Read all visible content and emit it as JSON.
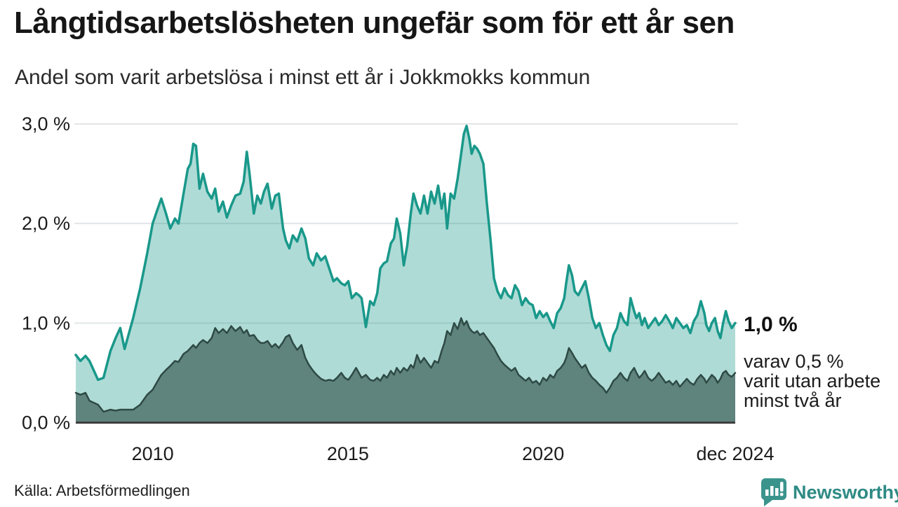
{
  "header": {},
  "annotation": {
    "value_label": "1,0 %",
    "lines": [
      "varav 0,5 %",
      "varit utan arbete",
      "minst två år"
    ]
  },
  "footer": {
    "source": "Källa: Arbetsförmedlingen",
    "brand": "Newsworthy"
  },
  "colors": {
    "title": "#161616",
    "text": "#1c1c1c",
    "gridline": "#e2e5e7",
    "baseline": "#3f3f3f",
    "teal_line": "#19988a",
    "teal_fill": "rgba(26,152,138,0.35)",
    "dark_line": "#2e4a45",
    "dark_fill": "rgba(30,58,53,0.55)",
    "logo_teal": "#3a948c",
    "logo_text": "#2e8a84"
  },
  "chart_data": {
    "type": "area",
    "title": "Långtidsarbetslösheten ungefär som för ett år sen",
    "subtitle": "Andel som varit arbetslösa i minst ett år i Jokkmokks kommun",
    "xlabel": "",
    "ylabel": "",
    "grid": true,
    "legend": "none",
    "ylim": [
      0,
      3.0
    ],
    "yticks": [
      {
        "value": 0,
        "label": "0,0 %"
      },
      {
        "value": 1,
        "label": "1,0 %"
      },
      {
        "value": 2,
        "label": "2,0 %"
      },
      {
        "value": 3,
        "label": "3,0 %"
      }
    ],
    "xticks": [
      {
        "value": 2010,
        "label": "2010"
      },
      {
        "value": 2015,
        "label": "2015"
      },
      {
        "value": 2020,
        "label": "2020"
      },
      {
        "value": 2024.92,
        "label": "dec 2024"
      }
    ],
    "x": [
      2008.03,
      2008.15,
      2008.28,
      2008.38,
      2008.6,
      2008.74,
      2008.92,
      2009.05,
      2009.17,
      2009.28,
      2009.5,
      2009.68,
      2009.86,
      2010.0,
      2010.13,
      2010.22,
      2010.34,
      2010.45,
      2010.57,
      2010.66,
      2010.79,
      2010.9,
      2010.97,
      2011.04,
      2011.11,
      2011.2,
      2011.29,
      2011.4,
      2011.51,
      2011.6,
      2011.69,
      2011.8,
      2011.9,
      2012.01,
      2012.12,
      2012.24,
      2012.33,
      2012.41,
      2012.48,
      2012.59,
      2012.68,
      2012.77,
      2012.85,
      2012.94,
      2013.05,
      2013.14,
      2013.23,
      2013.34,
      2013.41,
      2013.5,
      2013.59,
      2013.7,
      2013.81,
      2013.91,
      2014.0,
      2014.11,
      2014.2,
      2014.31,
      2014.42,
      2014.52,
      2014.63,
      2014.72,
      2014.83,
      2014.92,
      2015.01,
      2015.1,
      2015.21,
      2015.28,
      2015.35,
      2015.46,
      2015.57,
      2015.66,
      2015.75,
      2015.83,
      2015.92,
      2016.0,
      2016.1,
      2016.18,
      2016.25,
      2016.34,
      2016.43,
      2016.52,
      2016.61,
      2016.68,
      2016.77,
      2016.86,
      2016.95,
      2017.04,
      2017.13,
      2017.22,
      2017.31,
      2017.4,
      2017.47,
      2017.54,
      2017.63,
      2017.72,
      2017.81,
      2017.9,
      2017.97,
      2018.04,
      2018.11,
      2018.17,
      2018.24,
      2018.31,
      2018.38,
      2018.47,
      2018.56,
      2018.65,
      2018.74,
      2018.83,
      2018.92,
      2019.01,
      2019.1,
      2019.19,
      2019.28,
      2019.37,
      2019.46,
      2019.55,
      2019.64,
      2019.73,
      2019.82,
      2019.91,
      2020.0,
      2020.09,
      2020.18,
      2020.27,
      2020.36,
      2020.45,
      2020.54,
      2020.59,
      2020.66,
      2020.74,
      2020.81,
      2020.9,
      2020.99,
      2021.08,
      2021.17,
      2021.26,
      2021.35,
      2021.44,
      2021.53,
      2021.62,
      2021.71,
      2021.8,
      2021.89,
      2021.98,
      2022.07,
      2022.16,
      2022.24,
      2022.33,
      2022.39,
      2022.46,
      2022.53,
      2022.6,
      2022.69,
      2022.78,
      2022.87,
      2022.96,
      2023.05,
      2023.14,
      2023.23,
      2023.32,
      2023.41,
      2023.5,
      2023.59,
      2023.68,
      2023.77,
      2023.86,
      2023.95,
      2024.04,
      2024.13,
      2024.18,
      2024.25,
      2024.32,
      2024.4,
      2024.47,
      2024.54,
      2024.61,
      2024.68,
      2024.75,
      2024.83,
      2024.92
    ],
    "series": [
      {
        "name": "Andel som varit arbetslösa i minst ett år",
        "stroke_width": 3.5,
        "values": [
          0.68,
          0.62,
          0.67,
          0.62,
          0.43,
          0.45,
          0.72,
          0.85,
          0.95,
          0.74,
          1.05,
          1.35,
          1.7,
          2.0,
          2.15,
          2.25,
          2.1,
          1.95,
          2.05,
          2.0,
          2.3,
          2.55,
          2.6,
          2.8,
          2.78,
          2.35,
          2.5,
          2.32,
          2.25,
          2.35,
          2.12,
          2.22,
          2.06,
          2.18,
          2.28,
          2.3,
          2.42,
          2.72,
          2.5,
          2.1,
          2.28,
          2.2,
          2.32,
          2.4,
          2.15,
          2.28,
          2.3,
          1.95,
          1.83,
          1.75,
          1.88,
          1.82,
          1.95,
          1.85,
          1.65,
          1.58,
          1.7,
          1.63,
          1.67,
          1.55,
          1.42,
          1.45,
          1.4,
          1.38,
          1.42,
          1.25,
          1.3,
          1.28,
          1.25,
          0.96,
          1.22,
          1.18,
          1.3,
          1.55,
          1.6,
          1.62,
          1.8,
          1.85,
          2.05,
          1.9,
          1.58,
          1.78,
          2.1,
          2.3,
          2.18,
          2.1,
          2.28,
          2.1,
          2.32,
          2.2,
          2.38,
          2.15,
          2.3,
          1.95,
          2.3,
          2.25,
          2.45,
          2.7,
          2.9,
          2.98,
          2.85,
          2.7,
          2.78,
          2.75,
          2.7,
          2.6,
          2.2,
          1.85,
          1.45,
          1.32,
          1.25,
          1.35,
          1.28,
          1.25,
          1.38,
          1.32,
          1.18,
          1.25,
          1.2,
          1.18,
          1.05,
          1.12,
          1.06,
          1.1,
          1.02,
          0.95,
          1.1,
          1.15,
          1.25,
          1.4,
          1.58,
          1.48,
          1.32,
          1.28,
          1.35,
          1.42,
          1.25,
          1.05,
          0.95,
          1.0,
          0.88,
          0.78,
          0.72,
          0.88,
          0.95,
          1.1,
          1.02,
          0.98,
          1.25,
          1.12,
          1.05,
          1.1,
          0.98,
          1.05,
          0.95,
          1.0,
          1.05,
          0.98,
          1.02,
          1.08,
          1.02,
          0.95,
          1.05,
          1.0,
          0.95,
          0.98,
          0.9,
          1.02,
          1.08,
          1.22,
          1.1,
          0.98,
          0.92,
          1.0,
          1.05,
          0.92,
          0.85,
          1.0,
          1.12,
          1.02,
          0.95,
          1.0
        ]
      },
      {
        "name": "varav utan arbete i minst två år",
        "stroke_width": 2.5,
        "values": [
          0.3,
          0.28,
          0.3,
          0.22,
          0.18,
          0.11,
          0.13,
          0.12,
          0.13,
          0.13,
          0.13,
          0.18,
          0.28,
          0.33,
          0.42,
          0.48,
          0.53,
          0.57,
          0.62,
          0.61,
          0.69,
          0.72,
          0.75,
          0.78,
          0.75,
          0.8,
          0.83,
          0.8,
          0.85,
          0.95,
          0.9,
          0.94,
          0.9,
          0.97,
          0.92,
          0.96,
          0.9,
          0.93,
          0.87,
          0.88,
          0.83,
          0.8,
          0.8,
          0.82,
          0.76,
          0.79,
          0.75,
          0.81,
          0.86,
          0.88,
          0.8,
          0.73,
          0.78,
          0.65,
          0.58,
          0.52,
          0.48,
          0.44,
          0.42,
          0.43,
          0.42,
          0.45,
          0.5,
          0.45,
          0.43,
          0.48,
          0.55,
          0.5,
          0.45,
          0.48,
          0.43,
          0.42,
          0.45,
          0.42,
          0.48,
          0.45,
          0.52,
          0.48,
          0.55,
          0.5,
          0.55,
          0.52,
          0.58,
          0.55,
          0.68,
          0.6,
          0.65,
          0.6,
          0.55,
          0.62,
          0.6,
          0.72,
          0.8,
          0.92,
          0.88,
          1.0,
          0.94,
          1.05,
          0.98,
          1.02,
          0.95,
          0.92,
          0.9,
          0.92,
          0.88,
          0.9,
          0.85,
          0.8,
          0.75,
          0.68,
          0.62,
          0.58,
          0.55,
          0.52,
          0.55,
          0.48,
          0.45,
          0.42,
          0.45,
          0.4,
          0.42,
          0.38,
          0.45,
          0.42,
          0.48,
          0.45,
          0.52,
          0.55,
          0.6,
          0.65,
          0.75,
          0.7,
          0.65,
          0.6,
          0.55,
          0.58,
          0.5,
          0.45,
          0.42,
          0.38,
          0.35,
          0.3,
          0.35,
          0.42,
          0.45,
          0.5,
          0.45,
          0.42,
          0.5,
          0.55,
          0.5,
          0.45,
          0.48,
          0.52,
          0.45,
          0.42,
          0.45,
          0.5,
          0.45,
          0.4,
          0.42,
          0.38,
          0.42,
          0.36,
          0.4,
          0.44,
          0.4,
          0.38,
          0.44,
          0.48,
          0.44,
          0.4,
          0.44,
          0.48,
          0.45,
          0.4,
          0.44,
          0.5,
          0.52,
          0.48,
          0.46,
          0.5
        ]
      }
    ]
  }
}
